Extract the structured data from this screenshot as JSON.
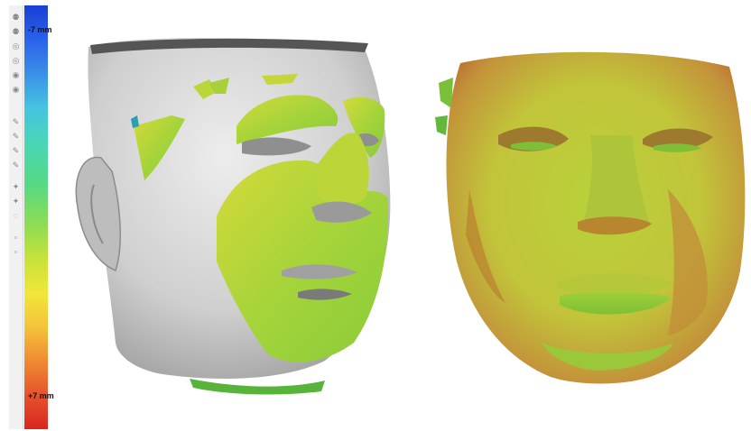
{
  "scale": {
    "top_label": "-7 mm",
    "bottom_label": "+7 mm"
  },
  "colors": {
    "scan_gray": "#d8d8d8",
    "deviation_green": "#9fd235",
    "deviation_yellow": "#dcd73a",
    "deviation_red": "#c8542a"
  }
}
